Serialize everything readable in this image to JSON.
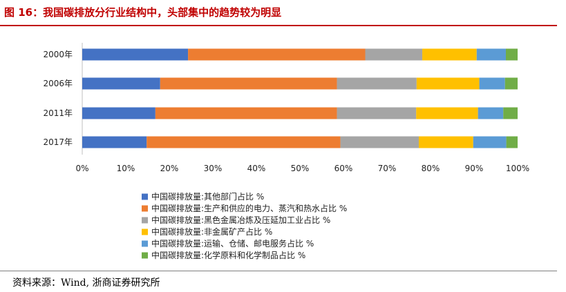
{
  "title": "图 16：我国碳排放分行业结构中，头部集中的趋势较为明显",
  "source": "资料来源：Wind, 浙商证券研究所",
  "chart_data": {
    "type": "bar",
    "orientation": "horizontal",
    "stacked": true,
    "percent_axis": true,
    "categories": [
      "2000年",
      "2006年",
      "2011年",
      "2017年"
    ],
    "xlim": [
      0,
      100
    ],
    "xticks": [
      "0%",
      "10%",
      "20%",
      "30%",
      "40%",
      "50%",
      "60%",
      "70%",
      "80%",
      "90%",
      "100%"
    ],
    "legend_position": "bottom",
    "series": [
      {
        "name": "中国碳排放量:其他部门占比 %",
        "color": "#4472c4",
        "values": [
          24.3,
          17.9,
          16.8,
          14.8
        ]
      },
      {
        "name": "中国碳排放量:生产和供应的电力、蒸汽和热水占比 %",
        "color": "#ed7d31",
        "values": [
          40.7,
          40.6,
          41.7,
          44.5
        ]
      },
      {
        "name": "中国碳排放量:黑色金属冶炼及压延加工业占比 %",
        "color": "#a5a5a5",
        "values": [
          13.1,
          18.3,
          18.2,
          18.0
        ]
      },
      {
        "name": "中国碳排放量:非金属矿产占比 %",
        "color": "#ffc000",
        "values": [
          12.5,
          14.4,
          14.2,
          12.5
        ]
      },
      {
        "name": "中国碳排放量:运输、仓储、邮电服务占比 %",
        "color": "#5b9bd5",
        "values": [
          6.7,
          5.9,
          5.8,
          7.6
        ]
      },
      {
        "name": "中国碳排放量:化学原料和化学制品占比 %",
        "color": "#70ad47",
        "values": [
          2.7,
          2.9,
          3.3,
          2.6
        ]
      }
    ]
  }
}
